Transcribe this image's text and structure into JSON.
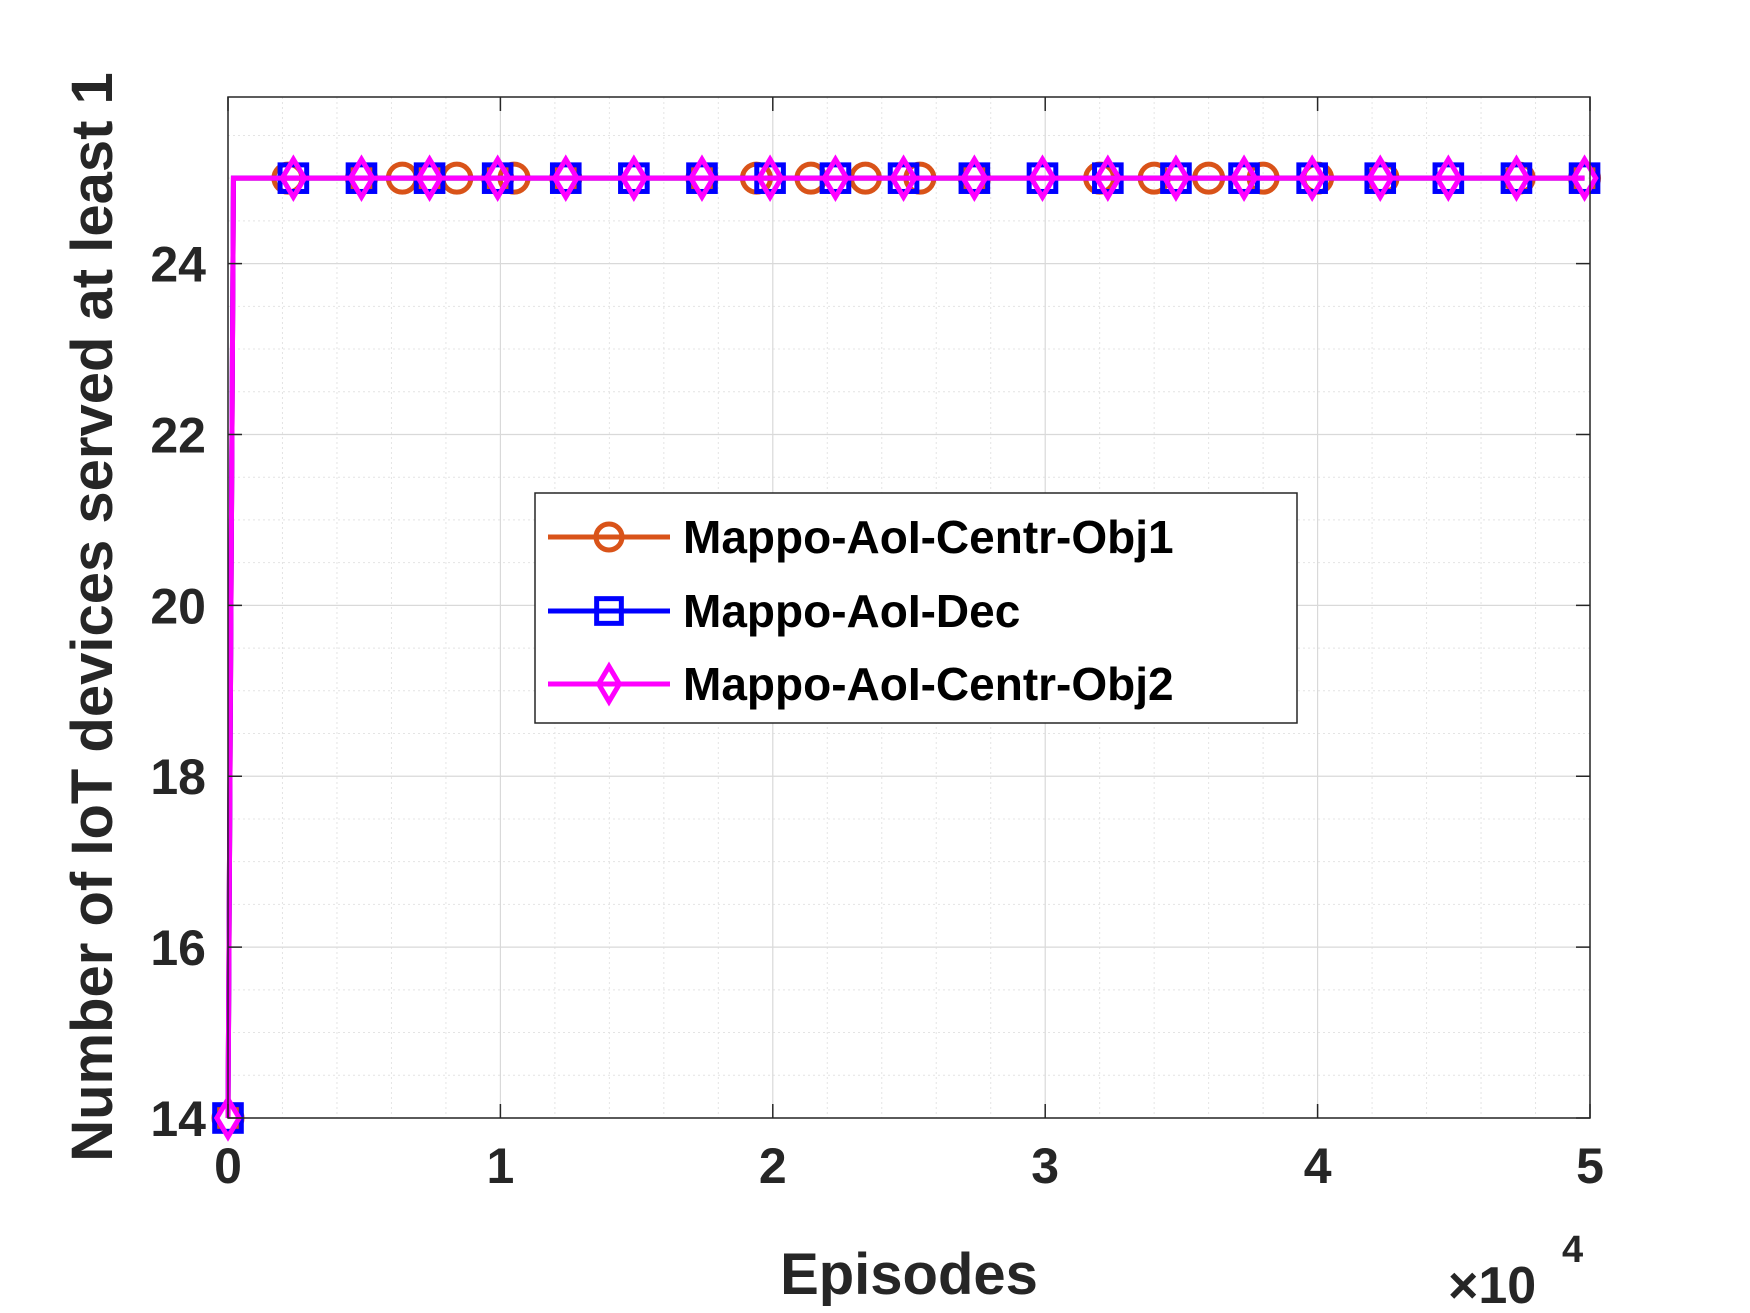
{
  "chart_data": {
    "type": "line",
    "title": "",
    "xlabel": "Episodes",
    "ylabel": "Number of IoT devices served at least 1",
    "x_exponent_label": "×10",
    "x_exponent_power": "4",
    "xlim": [
      0,
      5
    ],
    "ylim": [
      14,
      25
    ],
    "xticks": [
      0,
      1,
      2,
      3,
      4,
      5
    ],
    "xtick_labels": [
      "0",
      "1",
      "2",
      "3",
      "4",
      "5"
    ],
    "yticks": [
      14,
      16,
      18,
      20,
      22,
      24
    ],
    "ytick_labels": [
      "14",
      "16",
      "18",
      "20",
      "22",
      "24"
    ],
    "grid": true,
    "minor_grid": true,
    "legend_position": "center",
    "series": [
      {
        "name": "Mappo-AoI-Centr-Obj1",
        "color": "#d95319",
        "marker": "circle",
        "line": [
          [
            0,
            14
          ],
          [
            0.02,
            25
          ],
          [
            4.98,
            25
          ]
        ],
        "markers_x": [
          0,
          0.22,
          0.49,
          0.64,
          0.74,
          0.84,
          0.99,
          1.05,
          1.24,
          1.74,
          1.94,
          2.14,
          2.34,
          2.54,
          2.74,
          3.2,
          3.4,
          3.6,
          3.8,
          4.0,
          4.24,
          4.74,
          4.98
        ],
        "markers_y": 25
      },
      {
        "name": "Mappo-AoI-Dec",
        "color": "#0000ff",
        "marker": "square",
        "line": [
          [
            0,
            14
          ],
          [
            0.02,
            25
          ],
          [
            4.98,
            25
          ]
        ],
        "markers_x": [
          0,
          0.24,
          0.49,
          0.74,
          0.99,
          1.24,
          1.49,
          1.74,
          1.99,
          2.23,
          2.48,
          2.74,
          2.99,
          3.23,
          3.48,
          3.73,
          3.98,
          4.23,
          4.48,
          4.73,
          4.98
        ],
        "markers_y": 25
      },
      {
        "name": "Mappo-AoI-Centr-Obj2",
        "color": "#ff00ff",
        "marker": "diamond",
        "line": [
          [
            0,
            14
          ],
          [
            0.02,
            25
          ],
          [
            4.98,
            25
          ]
        ],
        "markers_x": [
          0,
          0.24,
          0.49,
          0.74,
          0.99,
          1.24,
          1.49,
          1.74,
          1.99,
          2.23,
          2.48,
          2.74,
          2.99,
          3.23,
          3.48,
          3.73,
          3.98,
          4.23,
          4.48,
          4.73,
          4.98
        ],
        "markers_y": 25
      }
    ]
  }
}
